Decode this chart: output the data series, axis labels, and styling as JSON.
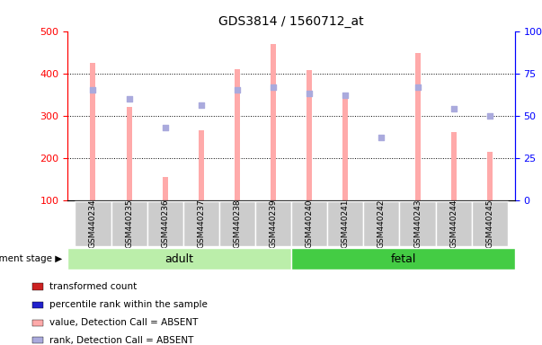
{
  "title": "GDS3814 / 1560712_at",
  "samples": [
    "GSM440234",
    "GSM440235",
    "GSM440236",
    "GSM440237",
    "GSM440238",
    "GSM440239",
    "GSM440240",
    "GSM440241",
    "GSM440242",
    "GSM440243",
    "GSM440244",
    "GSM440245"
  ],
  "bar_values": [
    425,
    320,
    155,
    265,
    410,
    470,
    407,
    350,
    100,
    447,
    260,
    215
  ],
  "rank_values": [
    65,
    60,
    43,
    56,
    65,
    67,
    63,
    62,
    37,
    67,
    54,
    50
  ],
  "bar_color_absent": "#ffaaaa",
  "rank_color_absent": "#aaaadd",
  "ylim_left": [
    100,
    500
  ],
  "ylim_right": [
    0,
    100
  ],
  "yticks_left": [
    100,
    200,
    300,
    400,
    500
  ],
  "yticks_right": [
    0,
    25,
    50,
    75,
    100
  ],
  "group_adult_label": "adult",
  "group_fetal_label": "fetal",
  "group_adult_color": "#bbeeaa",
  "group_fetal_color": "#44cc44",
  "stage_label": "development stage",
  "legend_items": [
    {
      "label": "transformed count",
      "color": "#cc2222"
    },
    {
      "label": "percentile rank within the sample",
      "color": "#2222cc"
    },
    {
      "label": "value, Detection Call = ABSENT",
      "color": "#ffaaaa"
    },
    {
      "label": "rank, Detection Call = ABSENT",
      "color": "#aaaadd"
    }
  ],
  "bar_width": 0.15,
  "grid_yticks": [
    200,
    300,
    400
  ]
}
